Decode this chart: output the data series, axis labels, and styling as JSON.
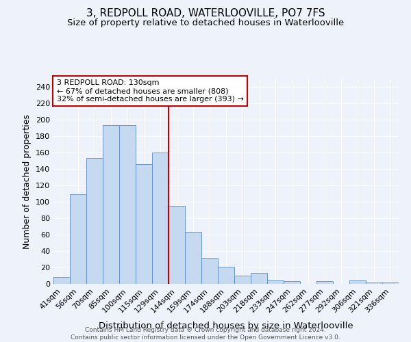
{
  "title1": "3, REDPOLL ROAD, WATERLOOVILLE, PO7 7FS",
  "title2": "Size of property relative to detached houses in Waterlooville",
  "xlabel": "Distribution of detached houses by size in Waterlooville",
  "ylabel": "Number of detached properties",
  "footer1": "Contains HM Land Registry data ® Crown copyright and database right 2024.",
  "footer2": "Contains public sector information licensed under the Open Government Licence v3.0.",
  "categories": [
    "41sqm",
    "56sqm",
    "70sqm",
    "85sqm",
    "100sqm",
    "115sqm",
    "129sqm",
    "144sqm",
    "159sqm",
    "174sqm",
    "188sqm",
    "203sqm",
    "218sqm",
    "233sqm",
    "247sqm",
    "262sqm",
    "277sqm",
    "292sqm",
    "306sqm",
    "321sqm",
    "336sqm"
  ],
  "values": [
    8,
    109,
    153,
    193,
    193,
    146,
    160,
    95,
    63,
    32,
    21,
    10,
    13,
    4,
    3,
    0,
    3,
    0,
    4,
    2,
    2
  ],
  "bar_color": "#c5d9f1",
  "bar_edge_color": "#5b8bc9",
  "vline_x_index": 6,
  "vline_color": "#c00000",
  "annotation_line1": "3 REDPOLL ROAD: 130sqm",
  "annotation_line2": "← 67% of detached houses are smaller (808)",
  "annotation_line3": "32% of semi-detached houses are larger (393) →",
  "annotation_box_color": "#ffffff",
  "annotation_border_color": "#c00000",
  "ylim": [
    0,
    250
  ],
  "yticks": [
    0,
    20,
    40,
    60,
    80,
    100,
    120,
    140,
    160,
    180,
    200,
    220,
    240
  ],
  "background_color": "#eef2fb",
  "grid_color": "#ffffff",
  "title1_fontsize": 11,
  "title2_fontsize": 9.5,
  "xlabel_fontsize": 9.5,
  "ylabel_fontsize": 9,
  "tick_fontsize": 8,
  "footer_fontsize": 6.5
}
